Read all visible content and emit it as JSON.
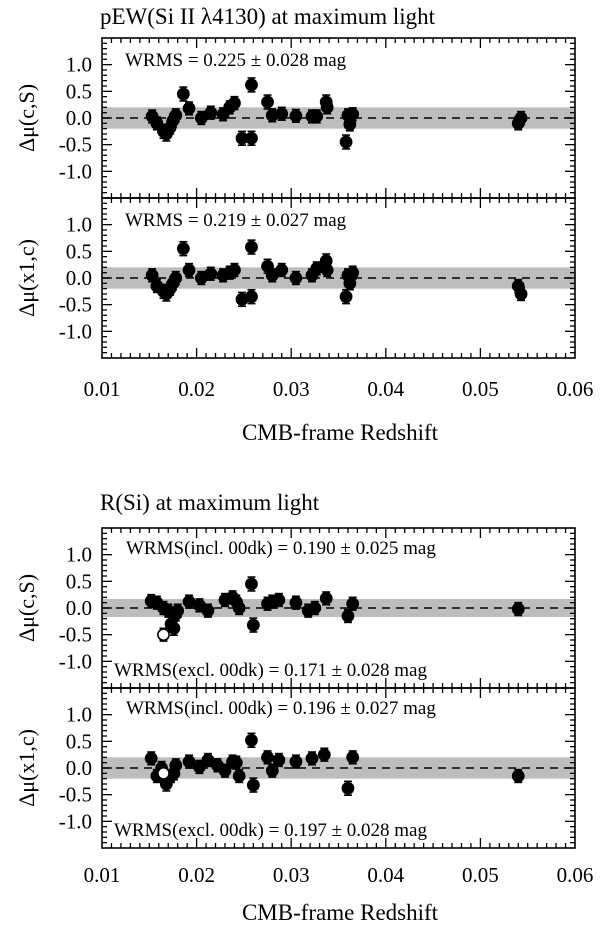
{
  "chart_data": [
    {
      "type": "scatter",
      "title": "pEW(Si II λ4130) at maximum light",
      "panels": [
        {
          "ylabel": "Δμ(c,S)",
          "annotations": [
            "WRMS = 0.225 ± 0.028 mag"
          ],
          "band": [
            -0.2,
            0.2
          ],
          "points": [
            [
              0.0153,
              0.03,
              0.12
            ],
            [
              0.0158,
              -0.1,
              0.12
            ],
            [
              0.0165,
              -0.25,
              0.13
            ],
            [
              0.0168,
              -0.3,
              0.13
            ],
            [
              0.0172,
              -0.18,
              0.12
            ],
            [
              0.0175,
              -0.05,
              0.12
            ],
            [
              0.0178,
              0.05,
              0.12
            ],
            [
              0.0186,
              0.45,
              0.13
            ],
            [
              0.0192,
              0.18,
              0.12
            ],
            [
              0.0205,
              0.0,
              0.12
            ],
            [
              0.0215,
              0.1,
              0.12
            ],
            [
              0.0228,
              0.07,
              0.12
            ],
            [
              0.0235,
              0.2,
              0.12
            ],
            [
              0.024,
              0.28,
              0.12
            ],
            [
              0.0248,
              -0.38,
              0.13
            ],
            [
              0.0258,
              0.62,
              0.13
            ],
            [
              0.0258,
              -0.38,
              0.13
            ],
            [
              0.0275,
              0.3,
              0.13
            ],
            [
              0.028,
              0.05,
              0.12
            ],
            [
              0.029,
              0.08,
              0.12
            ],
            [
              0.0305,
              0.04,
              0.12
            ],
            [
              0.0322,
              0.03,
              0.12
            ],
            [
              0.0327,
              0.03,
              0.12
            ],
            [
              0.0337,
              0.3,
              0.13
            ],
            [
              0.0338,
              0.2,
              0.12
            ],
            [
              0.0358,
              -0.45,
              0.13
            ],
            [
              0.036,
              0.05,
              0.12
            ],
            [
              0.0362,
              -0.12,
              0.12
            ],
            [
              0.0365,
              0.07,
              0.12
            ],
            [
              0.054,
              -0.1,
              0.12
            ],
            [
              0.0543,
              0.0,
              0.12
            ]
          ]
        },
        {
          "ylabel": "Δμ(x1,c)",
          "annotations": [
            "WRMS = 0.219 ± 0.027 mag"
          ],
          "band": [
            -0.2,
            0.2
          ],
          "points": [
            [
              0.0153,
              0.05,
              0.12
            ],
            [
              0.0158,
              -0.15,
              0.12
            ],
            [
              0.0165,
              -0.25,
              0.13
            ],
            [
              0.0168,
              -0.3,
              0.13
            ],
            [
              0.0172,
              -0.2,
              0.12
            ],
            [
              0.0175,
              -0.1,
              0.12
            ],
            [
              0.0178,
              0.0,
              0.12
            ],
            [
              0.0186,
              0.55,
              0.13
            ],
            [
              0.0192,
              0.15,
              0.12
            ],
            [
              0.0205,
              0.0,
              0.12
            ],
            [
              0.0215,
              0.08,
              0.12
            ],
            [
              0.0228,
              0.05,
              0.12
            ],
            [
              0.0235,
              0.1,
              0.12
            ],
            [
              0.024,
              0.15,
              0.12
            ],
            [
              0.0248,
              -0.4,
              0.13
            ],
            [
              0.0258,
              0.58,
              0.13
            ],
            [
              0.0258,
              -0.35,
              0.13
            ],
            [
              0.0275,
              0.22,
              0.13
            ],
            [
              0.028,
              0.05,
              0.12
            ],
            [
              0.029,
              0.15,
              0.12
            ],
            [
              0.0305,
              0.0,
              0.12
            ],
            [
              0.0322,
              0.05,
              0.12
            ],
            [
              0.0327,
              0.18,
              0.12
            ],
            [
              0.0337,
              0.32,
              0.13
            ],
            [
              0.0338,
              0.15,
              0.12
            ],
            [
              0.0358,
              -0.35,
              0.13
            ],
            [
              0.036,
              0.05,
              0.12
            ],
            [
              0.0362,
              -0.1,
              0.12
            ],
            [
              0.0365,
              0.1,
              0.12
            ],
            [
              0.054,
              -0.15,
              0.12
            ],
            [
              0.0543,
              -0.3,
              0.12
            ]
          ]
        }
      ],
      "xlabel": "CMB-frame Redshift",
      "xlim": [
        0.01,
        0.06
      ],
      "ylim": [
        -1.5,
        1.5
      ],
      "xticks": [
        "0.01",
        "0.02",
        "0.03",
        "0.04",
        "0.05",
        "0.06"
      ],
      "yticks": [
        "1.0",
        "0.5",
        "0.0",
        "-0.5",
        "-1.0"
      ],
      "grid": false
    },
    {
      "type": "scatter",
      "title": "R(Si) at maximum light",
      "panels": [
        {
          "ylabel": "Δμ(c,S)",
          "annotations": [
            "WRMS(incl. 00dk) = 0.190 ± 0.025 mag",
            "WRMS(excl. 00dk) = 0.171 ± 0.028 mag"
          ],
          "band": [
            -0.17,
            0.17
          ],
          "points": [
            [
              0.0152,
              0.13,
              0.12
            ],
            [
              0.0158,
              0.1,
              0.12
            ],
            [
              0.0165,
              0.0,
              0.12
            ],
            [
              0.017,
              -0.05,
              0.12
            ],
            [
              0.0173,
              -0.3,
              0.13
            ],
            [
              0.0176,
              -0.38,
              0.13
            ],
            [
              0.0178,
              -0.12,
              0.12
            ],
            [
              0.018,
              -0.05,
              0.12
            ],
            [
              0.0192,
              0.12,
              0.12
            ],
            [
              0.0203,
              0.05,
              0.12
            ],
            [
              0.0212,
              -0.05,
              0.12
            ],
            [
              0.023,
              0.15,
              0.12
            ],
            [
              0.0238,
              0.2,
              0.12
            ],
            [
              0.0242,
              0.12,
              0.12
            ],
            [
              0.0245,
              0.0,
              0.12
            ],
            [
              0.0258,
              0.45,
              0.13
            ],
            [
              0.026,
              -0.32,
              0.13
            ],
            [
              0.0275,
              0.08,
              0.12
            ],
            [
              0.028,
              0.12,
              0.12
            ],
            [
              0.0287,
              0.15,
              0.12
            ],
            [
              0.0305,
              0.1,
              0.12
            ],
            [
              0.0318,
              -0.05,
              0.12
            ],
            [
              0.0325,
              0.0,
              0.12
            ],
            [
              0.0337,
              0.18,
              0.12
            ],
            [
              0.036,
              -0.15,
              0.12
            ],
            [
              0.0365,
              0.08,
              0.12
            ],
            [
              0.054,
              -0.02,
              0.12
            ]
          ],
          "open_points": [
            [
              0.0165,
              -0.5,
              0.12
            ]
          ]
        },
        {
          "ylabel": "Δμ(x1,c)",
          "annotations": [
            "WRMS(incl. 00dk) = 0.196 ± 0.027 mag",
            "WRMS(excl. 00dk) = 0.197 ± 0.028 mag"
          ],
          "band": [
            -0.2,
            0.2
          ],
          "points": [
            [
              0.0152,
              0.18,
              0.12
            ],
            [
              0.0158,
              -0.15,
              0.12
            ],
            [
              0.0163,
              0.0,
              0.12
            ],
            [
              0.0168,
              -0.3,
              0.13
            ],
            [
              0.0173,
              -0.15,
              0.12
            ],
            [
              0.0176,
              -0.1,
              0.12
            ],
            [
              0.0178,
              0.05,
              0.12
            ],
            [
              0.0192,
              0.12,
              0.12
            ],
            [
              0.0203,
              0.02,
              0.12
            ],
            [
              0.0212,
              0.15,
              0.12
            ],
            [
              0.0222,
              0.05,
              0.12
            ],
            [
              0.023,
              -0.05,
              0.12
            ],
            [
              0.0238,
              0.12,
              0.12
            ],
            [
              0.0242,
              0.1,
              0.12
            ],
            [
              0.0245,
              -0.15,
              0.12
            ],
            [
              0.0258,
              0.52,
              0.13
            ],
            [
              0.026,
              -0.32,
              0.13
            ],
            [
              0.0275,
              0.2,
              0.12
            ],
            [
              0.028,
              -0.05,
              0.12
            ],
            [
              0.0287,
              0.15,
              0.12
            ],
            [
              0.0305,
              0.12,
              0.12
            ],
            [
              0.0322,
              0.18,
              0.12
            ],
            [
              0.0335,
              0.25,
              0.12
            ],
            [
              0.036,
              -0.38,
              0.13
            ],
            [
              0.0365,
              0.2,
              0.12
            ],
            [
              0.054,
              -0.15,
              0.12
            ]
          ],
          "open_points": [
            [
              0.0165,
              -0.1,
              0.12
            ]
          ]
        }
      ],
      "xlabel": "CMB-frame Redshift",
      "xlim": [
        0.01,
        0.06
      ],
      "ylim": [
        -1.5,
        1.5
      ],
      "xticks": [
        "0.01",
        "0.02",
        "0.03",
        "0.04",
        "0.05",
        "0.06"
      ],
      "yticks": [
        "1.0",
        "0.5",
        "0.0",
        "-0.5",
        "-1.0"
      ],
      "grid": false
    }
  ]
}
